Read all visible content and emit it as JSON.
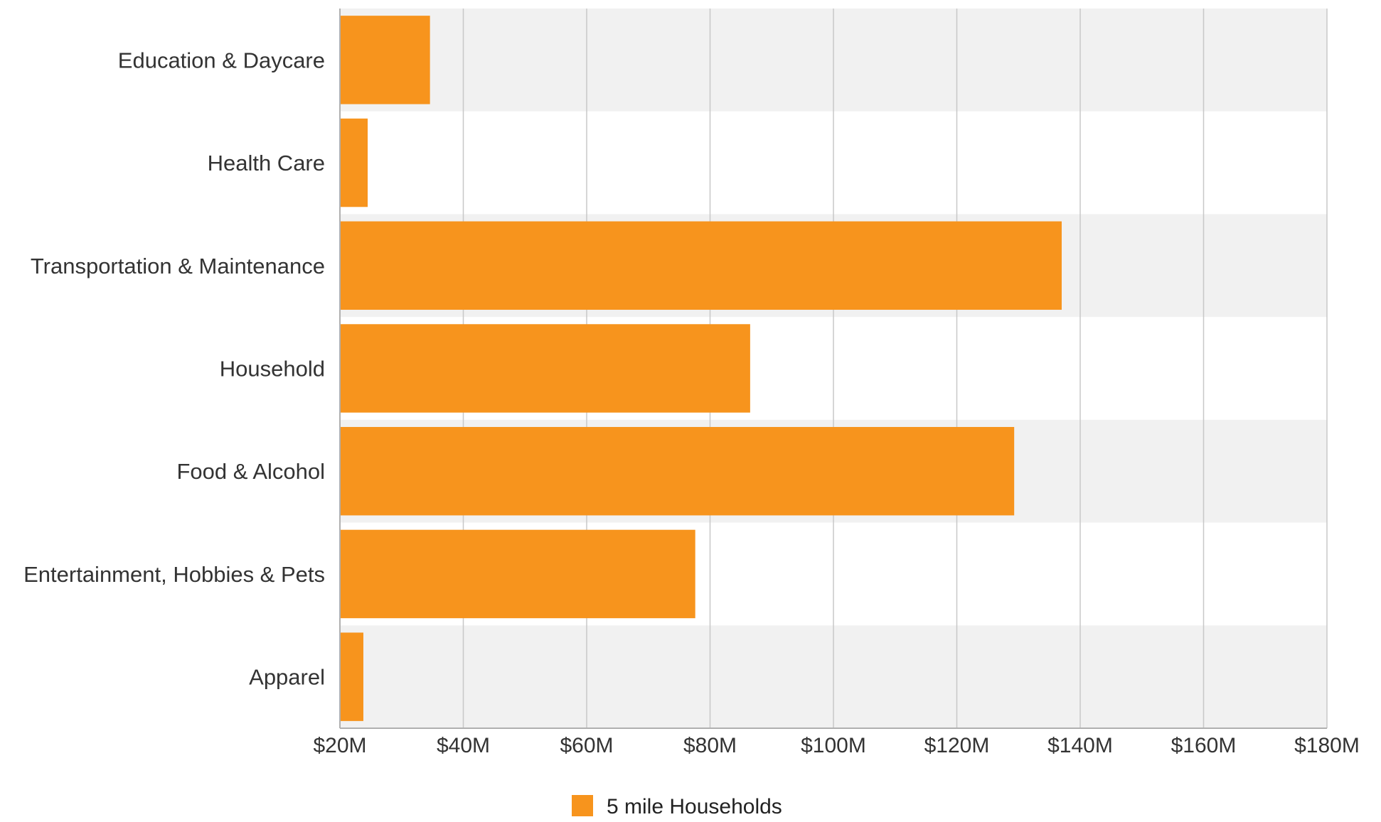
{
  "chart_data": {
    "type": "bar",
    "orientation": "horizontal",
    "title": "",
    "xlabel": "",
    "ylabel": "",
    "categories": [
      "Education & Daycare",
      "Health Care",
      "Transportation & Maintenance",
      "Household",
      "Food & Alcohol",
      "Entertainment, Hobbies & Pets",
      "Apparel"
    ],
    "series": [
      {
        "name": "5 mile Households",
        "values": [
          34.6,
          24.5,
          137.0,
          86.5,
          129.3,
          77.6,
          23.8
        ]
      }
    ],
    "xlim": [
      20,
      180
    ],
    "x_ticks": [
      20,
      40,
      60,
      80,
      100,
      120,
      140,
      160,
      180
    ],
    "x_tick_labels": [
      "$20M",
      "$40M",
      "$60M",
      "$80M",
      "$100M",
      "$120M",
      "$140M",
      "$160M",
      "$180M"
    ],
    "grid": true,
    "legend_position": "bottom-center"
  },
  "colors": {
    "bar": "#F7941D",
    "band": "#F1F1F1",
    "grid": "#C8C8C8",
    "axis": "#B0B0B0",
    "text": "#333333"
  }
}
